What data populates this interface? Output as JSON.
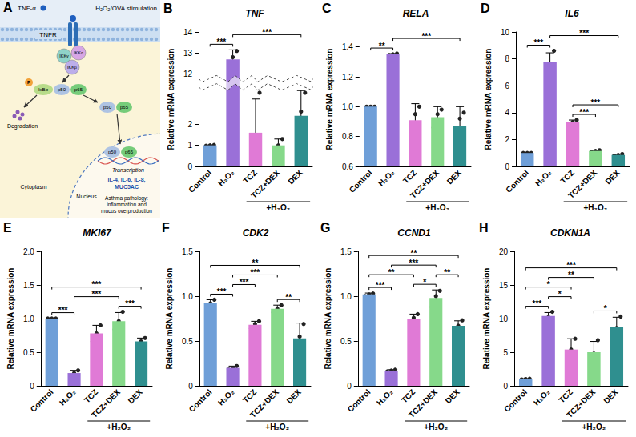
{
  "diagram": {
    "letter": "A",
    "stimulus": "H₂O₂/OVA stimulation",
    "ligand": "TNF-α",
    "receptor": "TNFR",
    "ikk": [
      "IKKγ",
      "IKKα",
      "IKKβ"
    ],
    "phosphate": "P",
    "inhibitor": "IκBα",
    "subunits": [
      "p50",
      "p65"
    ],
    "degradation": "Degradation",
    "transcription": "Transcription",
    "targets": "IL-4, IL-6, IL-8, MUC5AC",
    "cytoplasm": "Cytoplasm",
    "nucleus": "Nucleus",
    "outcome": "Asthma pathology: inflammation and mucus overproduction"
  },
  "chart_data": [
    {
      "panel": "B",
      "type": "bar",
      "title": "TNF",
      "y_label": "Relative mRNA expression",
      "categories": [
        "Control",
        "H₂O₂",
        "TCZ",
        "TCZ+DEX",
        "DEX"
      ],
      "colors": [
        "#6f9fd8",
        "#9a70d8",
        "#e07ad6",
        "#86d98a",
        "#2f8f8f"
      ],
      "values": [
        1.0,
        12.7,
        1.6,
        1.0,
        2.4
      ],
      "errors": [
        0.02,
        0.45,
        1.6,
        0.3,
        1.2
      ],
      "points": [
        [
          0.98,
          1.0,
          1.02
        ],
        [
          12.2,
          12.8,
          13.1
        ],
        [
          0.6,
          0.7,
          3.5
        ],
        [
          0.7,
          1.0,
          1.3
        ],
        [
          1.1,
          2.6,
          3.5
        ]
      ],
      "group": {
        "label": "+H₂O₂",
        "categories": [
          "TCZ",
          "TCZ+DEX",
          "DEX"
        ]
      },
      "ylim": [
        0,
        14
      ],
      "yticks": [
        0,
        1,
        2,
        12,
        13,
        14
      ],
      "y_break": [
        3.8,
        11.8
      ],
      "comparisons": [
        {
          "pair": [
            "Control",
            "H₂O₂"
          ],
          "label": "***"
        },
        {
          "pair": [
            "H₂O₂",
            "DEX"
          ],
          "label": "***"
        }
      ],
      "grid": false
    },
    {
      "panel": "C",
      "type": "bar",
      "title": "RELA",
      "y_label": "Relative mRNA expression",
      "categories": [
        "Control",
        "H₂O₂",
        "TCZ",
        "TCZ+DEX",
        "DEX"
      ],
      "colors": [
        "#6f9fd8",
        "#9a70d8",
        "#e07ad6",
        "#86d98a",
        "#2f8f8f"
      ],
      "values": [
        1.0,
        1.35,
        0.91,
        0.93,
        0.87
      ],
      "errors": [
        0.005,
        0.005,
        0.11,
        0.07,
        0.13
      ],
      "points": [
        [
          1.0,
          1.0,
          1.0
        ],
        [
          1.345,
          1.35,
          1.355
        ],
        [
          0.78,
          0.95,
          1.0
        ],
        [
          0.86,
          0.95,
          0.98
        ],
        [
          0.73,
          0.92,
          0.96
        ]
      ],
      "group": {
        "label": "+H₂O₂",
        "categories": [
          "TCZ",
          "TCZ+DEX",
          "DEX"
        ]
      },
      "ylim": [
        0.6,
        1.5
      ],
      "yticks": [
        0.6,
        0.8,
        {
          "value": 1,
          "label": "1.0"
        },
        1.2,
        1.4
      ],
      "comparisons": [
        {
          "pair": [
            "Control",
            "H₂O₂"
          ],
          "label": "**"
        },
        {
          "pair": [
            "H₂O₂",
            "DEX"
          ],
          "label": "***"
        }
      ],
      "grid": false
    },
    {
      "panel": "D",
      "type": "bar",
      "title": "IL6",
      "y_label": "Relative mRNA expression",
      "categories": [
        "Control",
        "H₂O₂",
        "TCZ",
        "TCZ+DEX",
        "DEX"
      ],
      "colors": [
        "#6f9fd8",
        "#9a70d8",
        "#e07ad6",
        "#86d98a",
        "#2f8f8f"
      ],
      "values": [
        1.0,
        7.8,
        3.3,
        1.15,
        0.85
      ],
      "errors": [
        0.02,
        0.65,
        0.15,
        0.05,
        0.06
      ],
      "points": [
        [
          1.0,
          1.0,
          1.0
        ],
        [
          7.2,
          7.6,
          8.6
        ],
        [
          3.15,
          3.3,
          3.45
        ],
        [
          1.1,
          1.15,
          1.2
        ],
        [
          0.8,
          0.85,
          0.92
        ]
      ],
      "group": {
        "label": "+H₂O₂",
        "categories": [
          "TCZ",
          "TCZ+DEX",
          "DEX"
        ]
      },
      "ylim": [
        0,
        10
      ],
      "yticks": [
        0,
        2,
        4,
        6,
        8,
        10
      ],
      "comparisons": [
        {
          "pair": [
            "Control",
            "H₂O₂"
          ],
          "label": "***"
        },
        {
          "pair": [
            "H₂O₂",
            "DEX"
          ],
          "label": "***"
        },
        {
          "pair": [
            "TCZ",
            "TCZ+DEX"
          ],
          "label": "***"
        },
        {
          "pair": [
            "TCZ",
            "DEX"
          ],
          "label": "***"
        }
      ],
      "grid": false
    },
    {
      "panel": "E",
      "type": "bar",
      "title": "MKI67",
      "y_label": "Relative mRNA expression",
      "categories": [
        "Control",
        "H₂O₂",
        "TCZ",
        "TCZ+DEX",
        "DEX"
      ],
      "colors": [
        "#6f9fd8",
        "#9a70d8",
        "#e07ad6",
        "#86d98a",
        "#2f8f8f"
      ],
      "values": [
        1.0,
        0.19,
        0.78,
        0.96,
        0.66
      ],
      "errors": [
        0.005,
        0.04,
        0.12,
        0.13,
        0.05
      ],
      "points": [
        [
          1.0,
          1.0,
          1.0
        ],
        [
          0.15,
          0.19,
          0.23
        ],
        [
          0.66,
          0.78,
          0.9
        ],
        [
          0.84,
          0.96,
          1.1
        ],
        [
          0.61,
          0.66,
          0.71
        ]
      ],
      "group": {
        "label": "+H₂O₂",
        "categories": [
          "TCZ",
          "TCZ+DEX",
          "DEX"
        ]
      },
      "ylim": [
        0,
        2
      ],
      "yticks": [
        0,
        0.5,
        {
          "value": 1,
          "label": "1.0"
        },
        1.5,
        {
          "value": 2,
          "label": "2.0"
        }
      ],
      "comparisons": [
        {
          "pair": [
            "Control",
            "H₂O₂"
          ],
          "label": "***"
        },
        {
          "pair": [
            "Control",
            "DEX"
          ],
          "label": "***"
        },
        {
          "pair": [
            "H₂O₂",
            "TCZ+DEX"
          ],
          "label": "***"
        },
        {
          "pair": [
            "TCZ+DEX",
            "DEX"
          ],
          "label": "***"
        }
      ],
      "grid": false
    },
    {
      "panel": "F",
      "type": "bar",
      "title": "CDK2",
      "y_label": "Relative mRNA expression",
      "categories": [
        "Control",
        "H₂O₂",
        "TCZ",
        "TCZ+DEX",
        "DEX"
      ],
      "colors": [
        "#6f9fd8",
        "#9a70d8",
        "#e07ad6",
        "#86d98a",
        "#2f8f8f"
      ],
      "values": [
        0.92,
        0.2,
        0.68,
        0.86,
        0.53
      ],
      "errors": [
        0.04,
        0.02,
        0.04,
        0.04,
        0.17
      ],
      "points": [
        [
          0.88,
          0.92,
          0.96
        ],
        [
          0.18,
          0.2,
          0.22
        ],
        [
          0.64,
          0.69,
          0.72
        ],
        [
          0.82,
          0.86,
          0.9
        ],
        [
          0.35,
          0.55,
          0.69
        ]
      ],
      "group": {
        "label": "+H₂O₂",
        "categories": [
          "TCZ",
          "TCZ+DEX",
          "DEX"
        ]
      },
      "ylim": [
        0,
        1.5
      ],
      "yticks": [
        0,
        0.5,
        {
          "value": 1,
          "label": "1.0"
        },
        1.5
      ],
      "comparisons": [
        {
          "pair": [
            "Control",
            "H₂O₂"
          ],
          "label": "***"
        },
        {
          "pair": [
            "Control",
            "DEX"
          ],
          "label": "**"
        },
        {
          "pair": [
            "H₂O₂",
            "TCZ"
          ],
          "label": "***"
        },
        {
          "pair": [
            "H₂O₂",
            "TCZ+DEX"
          ],
          "label": "***"
        },
        {
          "pair": [
            "TCZ+DEX",
            "DEX"
          ],
          "label": "**"
        }
      ],
      "grid": false
    },
    {
      "panel": "G",
      "type": "bar",
      "title": "CCND1",
      "y_label": "Relative mRNA expression",
      "categories": [
        "Control",
        "H₂O₂",
        "TCZ",
        "TCZ+DEX",
        "DEX"
      ],
      "colors": [
        "#6f9fd8",
        "#9a70d8",
        "#e07ad6",
        "#86d98a",
        "#2f8f8f"
      ],
      "values": [
        1.02,
        0.17,
        0.75,
        0.98,
        0.67
      ],
      "errors": [
        0.015,
        0.01,
        0.05,
        0.09,
        0.055
      ],
      "points": [
        [
          1.0,
          1.02,
          1.03
        ],
        [
          0.16,
          0.17,
          0.18
        ],
        [
          0.7,
          0.76,
          0.8
        ],
        [
          0.88,
          1.0,
          1.06
        ],
        [
          0.62,
          0.67,
          0.73
        ]
      ],
      "group": {
        "label": "+H₂O₂",
        "categories": [
          "TCZ",
          "TCZ+DEX",
          "DEX"
        ]
      },
      "ylim": [
        0,
        1.5
      ],
      "yticks": [
        0,
        0.5,
        {
          "value": 1,
          "label": "1.0"
        },
        1.5
      ],
      "comparisons": [
        {
          "pair": [
            "Control",
            "H₂O₂"
          ],
          "label": "***"
        },
        {
          "pair": [
            "Control",
            "TCZ"
          ],
          "label": "**"
        },
        {
          "pair": [
            "Control",
            "DEX"
          ],
          "label": "**"
        },
        {
          "pair": [
            "H₂O₂",
            "TCZ+DEX"
          ],
          "label": "***"
        },
        {
          "pair": [
            "TCZ",
            "TCZ+DEX"
          ],
          "label": "*"
        },
        {
          "pair": [
            "TCZ+DEX",
            "DEX"
          ],
          "label": "**"
        }
      ],
      "grid": false
    },
    {
      "panel": "H",
      "type": "bar",
      "title": "CDKN1A",
      "y_label": "Relative mRNA expression",
      "categories": [
        "Control",
        "H₂O₂",
        "TCZ",
        "TCZ+DEX",
        "DEX"
      ],
      "colors": [
        "#6f9fd8",
        "#9a70d8",
        "#e07ad6",
        "#86d98a",
        "#2f8f8f"
      ],
      "values": [
        1.0,
        10.4,
        5.4,
        5.0,
        8.7
      ],
      "errors": [
        0.05,
        0.5,
        1.6,
        1.6,
        1.5
      ],
      "points": [
        [
          0.95,
          1.0,
          1.05
        ],
        [
          10.0,
          10.2,
          11.0
        ],
        [
          3.8,
          5.4,
          7.0
        ],
        [
          3.4,
          4.8,
          6.8
        ],
        [
          7.2,
          8.6,
          10.3
        ]
      ],
      "group": {
        "label": "+H₂O₂",
        "categories": [
          "TCZ",
          "TCZ+DEX",
          "DEX"
        ]
      },
      "ylim": [
        0,
        20
      ],
      "yticks": [
        0,
        5,
        10,
        15,
        20
      ],
      "comparisons": [
        {
          "pair": [
            "Control",
            "H₂O₂"
          ],
          "label": "***"
        },
        {
          "pair": [
            "H₂O₂",
            "TCZ"
          ],
          "label": "*"
        },
        {
          "pair": [
            "H₂O₂",
            "TCZ+DEX"
          ],
          "label": "**"
        },
        {
          "pair": [
            "TCZ+DEX",
            "DEX"
          ],
          "label": "*"
        },
        {
          "pair": [
            "Control",
            "TCZ"
          ],
          "label": "*"
        },
        {
          "pair": [
            "Control",
            "DEX"
          ],
          "label": "***"
        }
      ],
      "grid": false
    }
  ]
}
